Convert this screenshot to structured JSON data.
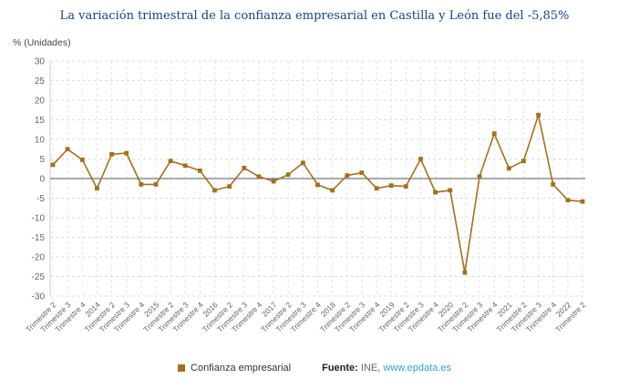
{
  "footer": {
    "source_label": "Fuente:",
    "source_text": "INE,",
    "link_text": "www.epdata.es"
  },
  "colors": {
    "series": "#a4701d",
    "title": "#16418c",
    "link": "#2fa4c7",
    "grid": "#dcdcdc",
    "zero_line": "#555555",
    "axis_text": "#666666"
  },
  "chart_data": {
    "type": "line",
    "title": "La variación trimestral de la confianza empresarial en Castilla y León fue del -5,85%",
    "xlabel": "",
    "ylabel": "% (Unidades)",
    "ylim": [
      -30,
      30
    ],
    "ytick_step": 5,
    "grid": true,
    "legend_position": "bottom",
    "marker": "square",
    "color": "#a4701d",
    "categories": [
      "Trimestre 2",
      "Trimestre 3",
      "Trimestre 4",
      "2014",
      "Trimestre 2",
      "Trimestre 3",
      "Trimestre 4",
      "2015",
      "Trimestre 2",
      "Trimestre 3",
      "Trimestre 4",
      "2016",
      "Trimestre 2",
      "Trimestre 3",
      "Trimestre 4",
      "2017",
      "Trimestre 2",
      "Trimestre 3",
      "Trimestre 4",
      "2018",
      "Trimestre 2",
      "Trimestre 3",
      "Trimestre 4",
      "2019",
      "Trimestre 2",
      "Trimestre 3",
      "Trimestre 4",
      "2020",
      "Trimestre 2",
      "Trimestre 3",
      "Trimestre 4",
      "2021",
      "Trimestre 2",
      "Trimestre 3",
      "Trimestre 4",
      "2022",
      "Trimestre 2"
    ],
    "series": [
      {
        "name": "Confianza empresarial",
        "values": [
          3.5,
          7.5,
          4.8,
          -2.5,
          6.2,
          6.5,
          -1.5,
          -1.5,
          4.5,
          3.3,
          2.0,
          -3.0,
          -2.0,
          2.7,
          0.5,
          -0.7,
          1.0,
          4.0,
          -1.6,
          -3.0,
          0.8,
          1.5,
          -2.5,
          -1.8,
          -2.0,
          5.0,
          -3.5,
          -3.0,
          -24.0,
          0.5,
          11.5,
          2.6,
          4.5,
          16.2,
          -1.5,
          -5.5,
          -5.85
        ]
      }
    ]
  }
}
